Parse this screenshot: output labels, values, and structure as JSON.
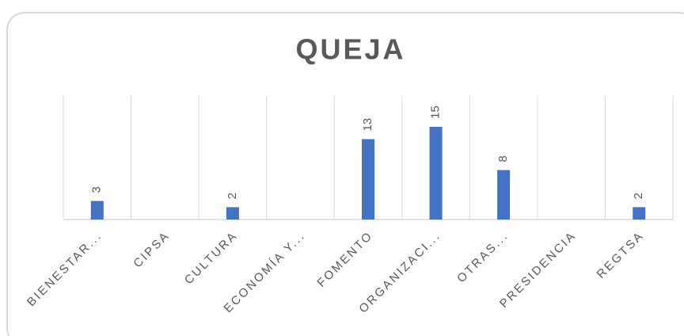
{
  "chart_data": {
    "type": "bar",
    "title": "QUEJA",
    "categories": [
      "BIENESTAR...",
      "CIPSA",
      "CULTURA",
      "ECONOMÍA Y...",
      "FOMENTO",
      "ORGANIZACI...",
      "OTRAS...",
      "PRESIDENCIA",
      "REGTSA"
    ],
    "values": [
      3,
      null,
      2,
      null,
      13,
      15,
      8,
      null,
      2
    ],
    "color": "#4472c4",
    "ylim": [
      0,
      20
    ]
  }
}
